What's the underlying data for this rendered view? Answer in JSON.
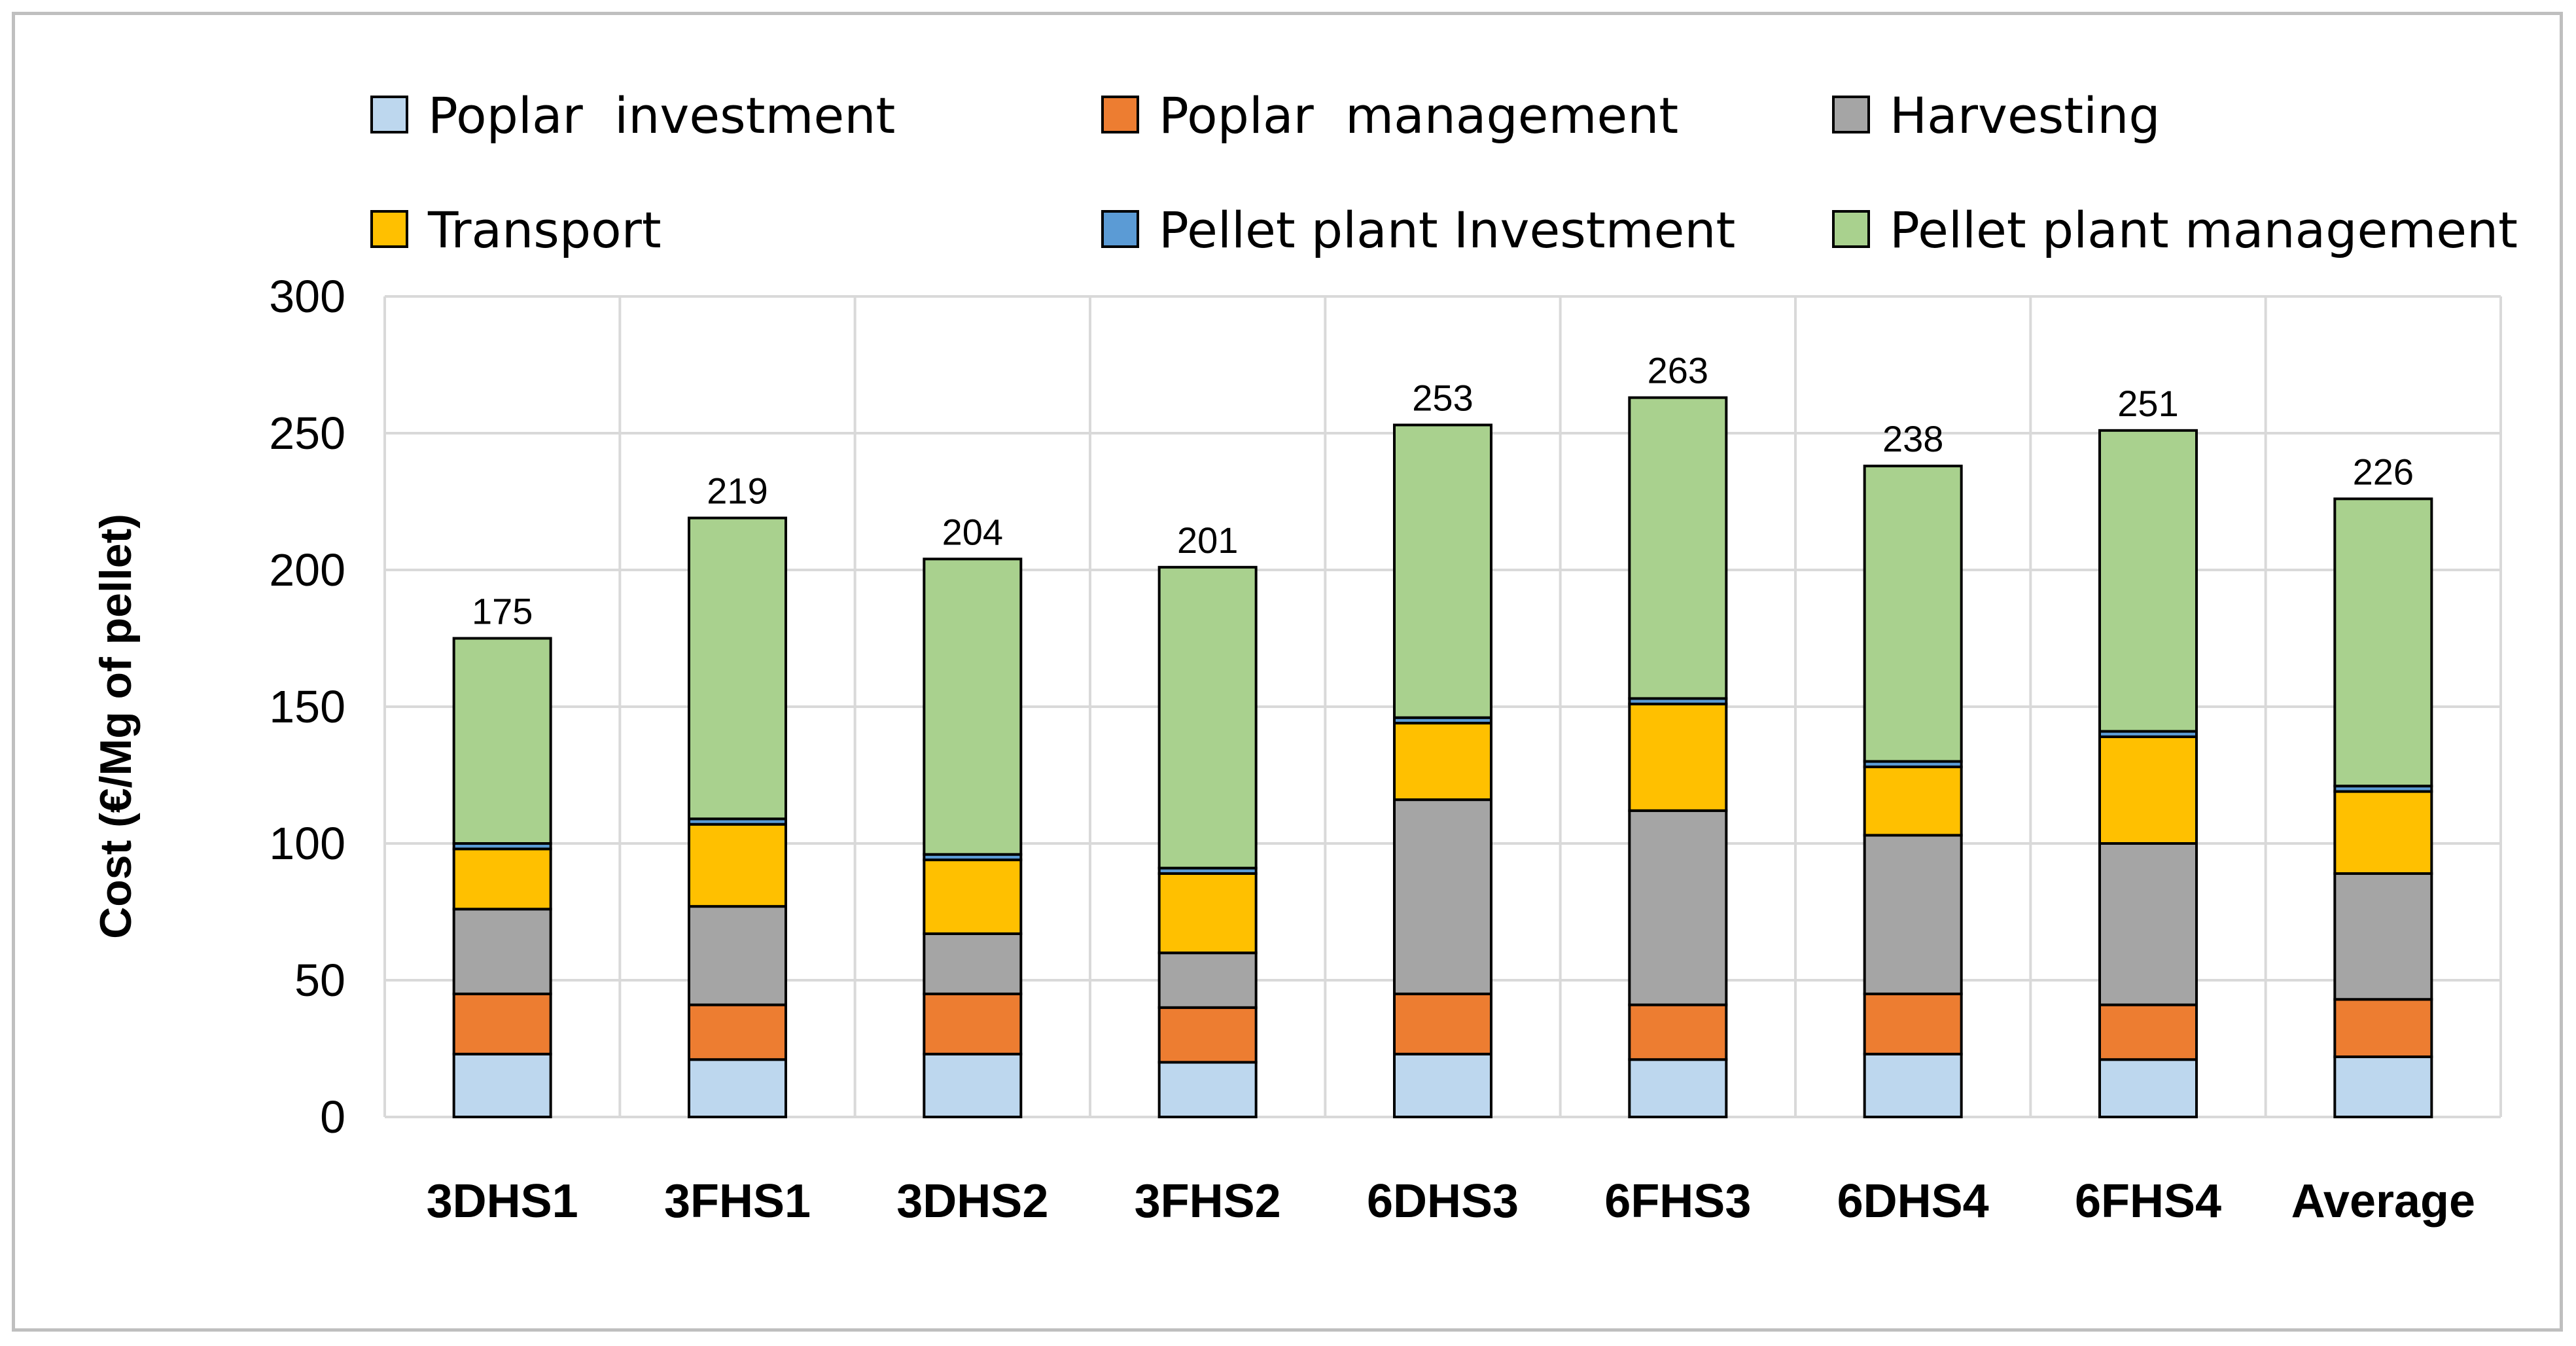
{
  "chart_data": {
    "type": "bar",
    "stacked": true,
    "title": "",
    "xlabel": "",
    "ylabel": "Cost (€/Mg of pellet)",
    "ylim": [
      0,
      300
    ],
    "yticks": [
      0,
      50,
      100,
      150,
      200,
      250,
      300
    ],
    "grid": true,
    "legend_position": "top",
    "categories": [
      "3DHS1",
      "3FHS1",
      "3DHS2",
      "3FHS2",
      "6DHS3",
      "6FHS3",
      "6DHS4",
      "6FHS4",
      "Average"
    ],
    "series": [
      {
        "name": "Poplar  investment",
        "color": "#bdd7ee",
        "values": [
          23,
          21,
          23,
          20,
          23,
          21,
          23,
          21,
          22
        ]
      },
      {
        "name": "Poplar  management",
        "color": "#ed7d31",
        "values": [
          22,
          20,
          22,
          20,
          22,
          20,
          22,
          20,
          21
        ]
      },
      {
        "name": "Harvesting",
        "color": "#a5a5a5",
        "values": [
          31,
          36,
          22,
          20,
          71,
          71,
          58,
          59,
          46
        ]
      },
      {
        "name": "Transport",
        "color": "#ffc000",
        "values": [
          22,
          30,
          27,
          29,
          28,
          39,
          25,
          39,
          30
        ]
      },
      {
        "name": "Pellet plant Investment",
        "color": "#5b9bd5",
        "values": [
          2,
          2,
          2,
          2,
          2,
          2,
          2,
          2,
          2
        ]
      },
      {
        "name": "Pellet plant management",
        "color": "#a9d18e",
        "values": [
          75,
          110,
          108,
          110,
          107,
          110,
          108,
          110,
          105
        ]
      }
    ],
    "totals": [
      175,
      219,
      204,
      201,
      253,
      263,
      238,
      251,
      226
    ]
  }
}
